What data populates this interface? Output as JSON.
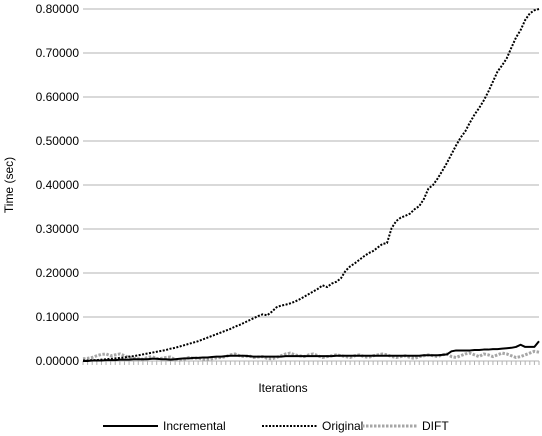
{
  "chart_data": {
    "type": "line",
    "xlabel": "Iterations",
    "ylabel": "Time (sec)",
    "ylim": [
      0,
      0.8
    ],
    "yticks": [
      0.0,
      0.1,
      0.2,
      0.3,
      0.4,
      0.5,
      0.6,
      0.7,
      0.8
    ],
    "ytick_labels": [
      "0.00000",
      "0.10000",
      "0.20000",
      "0.30000",
      "0.40000",
      "0.50000",
      "0.60000",
      "0.70000",
      "0.80000"
    ],
    "grid": "horizontal",
    "legend_position": "bottom",
    "num_iterations": 100,
    "series": [
      {
        "name": "Incremental",
        "color": "#000000",
        "style": "solid",
        "values": [
          0.0,
          0.0,
          0.001,
          0.001,
          0.001,
          0.002,
          0.002,
          0.002,
          0.003,
          0.003,
          0.003,
          0.004,
          0.004,
          0.004,
          0.004,
          0.005,
          0.005,
          0.004,
          0.004,
          0.003,
          0.004,
          0.005,
          0.006,
          0.006,
          0.007,
          0.007,
          0.008,
          0.008,
          0.009,
          0.01,
          0.01,
          0.011,
          0.012,
          0.012,
          0.012,
          0.012,
          0.011,
          0.01,
          0.01,
          0.01,
          0.01,
          0.01,
          0.01,
          0.01,
          0.011,
          0.011,
          0.011,
          0.011,
          0.011,
          0.011,
          0.011,
          0.011,
          0.011,
          0.011,
          0.011,
          0.012,
          0.012,
          0.012,
          0.012,
          0.012,
          0.012,
          0.012,
          0.012,
          0.012,
          0.012,
          0.012,
          0.012,
          0.012,
          0.012,
          0.012,
          0.012,
          0.012,
          0.012,
          0.012,
          0.013,
          0.013,
          0.013,
          0.013,
          0.014,
          0.015,
          0.022,
          0.024,
          0.024,
          0.024,
          0.024,
          0.025,
          0.025,
          0.026,
          0.026,
          0.027,
          0.027,
          0.028,
          0.029,
          0.03,
          0.032,
          0.037,
          0.032,
          0.032,
          0.032,
          0.045
        ]
      },
      {
        "name": "Original",
        "color": "#000000",
        "style": "dotted",
        "values": [
          0.001,
          0.001,
          0.002,
          0.002,
          0.003,
          0.004,
          0.005,
          0.006,
          0.007,
          0.008,
          0.01,
          0.011,
          0.013,
          0.015,
          0.017,
          0.019,
          0.021,
          0.023,
          0.025,
          0.028,
          0.03,
          0.033,
          0.036,
          0.039,
          0.042,
          0.045,
          0.049,
          0.053,
          0.057,
          0.061,
          0.065,
          0.069,
          0.073,
          0.078,
          0.082,
          0.087,
          0.092,
          0.097,
          0.102,
          0.106,
          0.104,
          0.112,
          0.122,
          0.126,
          0.128,
          0.131,
          0.135,
          0.14,
          0.146,
          0.152,
          0.158,
          0.164,
          0.172,
          0.168,
          0.176,
          0.18,
          0.188,
          0.205,
          0.215,
          0.222,
          0.23,
          0.238,
          0.245,
          0.25,
          0.258,
          0.266,
          0.268,
          0.302,
          0.318,
          0.326,
          0.33,
          0.335,
          0.345,
          0.352,
          0.368,
          0.392,
          0.4,
          0.415,
          0.432,
          0.45,
          0.47,
          0.49,
          0.508,
          0.522,
          0.542,
          0.56,
          0.575,
          0.592,
          0.612,
          0.635,
          0.658,
          0.672,
          0.688,
          0.712,
          0.735,
          0.752,
          0.775,
          0.79,
          0.797,
          0.8
        ]
      },
      {
        "name": "DIFT",
        "color": "#a6a6a6",
        "style": "dotted-gray",
        "values": [
          0.005,
          0.006,
          0.008,
          0.012,
          0.015,
          0.016,
          0.012,
          0.014,
          0.016,
          0.012,
          0.008,
          0.006,
          0.005,
          0.004,
          0.008,
          0.01,
          0.005,
          0.006,
          0.008,
          0.009,
          0.003,
          0.002,
          0.004,
          0.008,
          0.006,
          0.007,
          0.004,
          0.003,
          0.005,
          0.007,
          0.008,
          0.01,
          0.014,
          0.016,
          0.012,
          0.01,
          0.012,
          0.008,
          0.009,
          0.01,
          0.006,
          0.005,
          0.008,
          0.012,
          0.016,
          0.018,
          0.014,
          0.012,
          0.01,
          0.014,
          0.016,
          0.012,
          0.008,
          0.01,
          0.012,
          0.014,
          0.012,
          0.01,
          0.008,
          0.012,
          0.014,
          0.01,
          0.008,
          0.012,
          0.014,
          0.016,
          0.014,
          0.01,
          0.008,
          0.01,
          0.012,
          0.008,
          0.006,
          0.01,
          0.012,
          0.014,
          0.012,
          0.01,
          0.014,
          0.016,
          0.01,
          0.008,
          0.012,
          0.016,
          0.018,
          0.014,
          0.01,
          0.016,
          0.014,
          0.01,
          0.014,
          0.018,
          0.016,
          0.012,
          0.008,
          0.01,
          0.014,
          0.018,
          0.022,
          0.02
        ]
      }
    ]
  }
}
